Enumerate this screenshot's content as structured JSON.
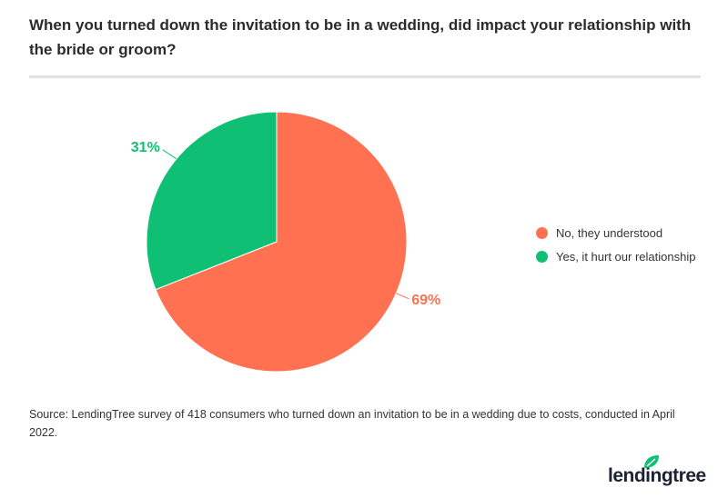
{
  "title": "When you turned down the invitation to be in a wedding, did impact your relationship with the bride or groom?",
  "chart_data": {
    "type": "pie",
    "title": "When you turned down the invitation to be in a wedding, did impact your relationship with the bride or groom?",
    "categories": [
      "No, they understood",
      "Yes, it hurt our relationship"
    ],
    "values": [
      69,
      31
    ],
    "labels": [
      "69%",
      "31%"
    ],
    "colors": [
      "#FF7150",
      "#0FBF74"
    ],
    "legend_position": "right"
  },
  "source": "Source: LendingTree survey of 418 consumers who turned down an invitation to be in a wedding due to costs, conducted in April 2022.",
  "logo": {
    "text": "lendingtree",
    "leaf_color": "#0FBF74"
  }
}
